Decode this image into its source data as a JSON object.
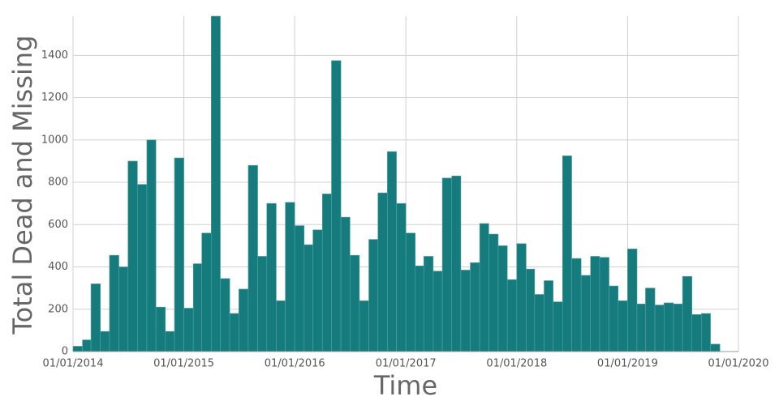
{
  "chart_data": {
    "type": "histogram",
    "xlabel": "Time",
    "ylabel": "Total Dead and Missing",
    "color": "#167b7d",
    "grid": true,
    "bins": [
      "2014-01-01",
      "2014-02-01",
      "2014-03-01",
      "2014-04-01",
      "2014-05-01",
      "2014-06-01",
      "2014-07-01",
      "2014-08-01",
      "2014-09-01",
      "2014-10-01",
      "2014-11-01",
      "2014-12-01",
      "2015-01-01",
      "2015-02-01",
      "2015-03-01",
      "2015-04-01",
      "2015-05-01",
      "2015-06-01",
      "2015-07-01",
      "2015-08-01",
      "2015-09-01",
      "2015-10-01",
      "2015-11-01",
      "2015-12-01",
      "2016-01-01",
      "2016-02-01",
      "2016-03-01",
      "2016-04-01",
      "2016-05-01",
      "2016-06-01",
      "2016-07-01",
      "2016-08-01",
      "2016-09-01",
      "2016-10-01",
      "2016-11-01",
      "2016-12-01",
      "2017-01-01",
      "2017-02-01",
      "2017-03-01",
      "2017-04-01",
      "2017-05-01",
      "2017-06-01",
      "2017-07-01",
      "2017-08-01",
      "2017-09-01",
      "2017-10-01",
      "2017-11-01",
      "2017-12-01",
      "2018-01-01",
      "2018-02-01",
      "2018-03-01",
      "2018-04-01",
      "2018-05-01",
      "2018-06-01",
      "2018-07-01",
      "2018-08-01",
      "2018-09-01",
      "2018-10-01",
      "2018-11-01",
      "2018-12-01",
      "2019-01-01",
      "2019-02-01",
      "2019-03-01",
      "2019-04-01",
      "2019-05-01",
      "2019-06-01",
      "2019-07-01",
      "2019-08-01",
      "2019-09-01",
      "2019-10-01",
      "2019-11-01"
    ],
    "values": [
      25,
      55,
      320,
      95,
      455,
      400,
      900,
      790,
      1000,
      210,
      95,
      915,
      205,
      415,
      560,
      1585,
      345,
      180,
      295,
      880,
      450,
      700,
      240,
      705,
      595,
      505,
      575,
      745,
      1375,
      635,
      455,
      240,
      530,
      750,
      945,
      700,
      560,
      405,
      450,
      380,
      820,
      830,
      385,
      420,
      605,
      555,
      500,
      340,
      510,
      390,
      270,
      335,
      235,
      925,
      440,
      360,
      450,
      445,
      310,
      240,
      485,
      225,
      300,
      220,
      230,
      225,
      355,
      175,
      180,
      35
    ],
    "xlim": [
      "2014-01-01",
      "2020-01-01"
    ],
    "xticks": [
      {
        "value": "2014-01-01",
        "label": "01/01/2014"
      },
      {
        "value": "2015-01-01",
        "label": "01/01/2015"
      },
      {
        "value": "2016-01-01",
        "label": "01/01/2016"
      },
      {
        "value": "2017-01-01",
        "label": "01/01/2017"
      },
      {
        "value": "2018-01-01",
        "label": "01/01/2018"
      },
      {
        "value": "2019-01-01",
        "label": "01/01/2019"
      },
      {
        "value": "2020-01-01",
        "label": "01/01/2020"
      }
    ],
    "ylim": [
      0,
      1585
    ],
    "yticks": [
      0,
      200,
      400,
      600,
      800,
      1000,
      1200,
      1400
    ]
  }
}
